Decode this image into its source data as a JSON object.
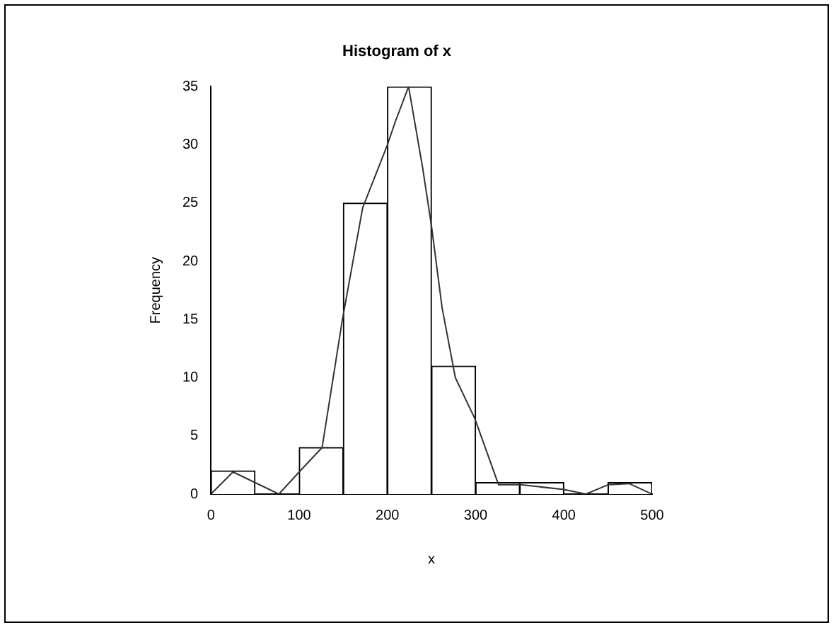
{
  "chart_data": {
    "type": "histogram",
    "title": "Histogram of x",
    "xlabel": "x",
    "ylabel": "Frequency",
    "bins": [
      0,
      50,
      100,
      150,
      200,
      250,
      300,
      350,
      400,
      450,
      500
    ],
    "values": [
      2,
      0,
      4,
      25,
      35,
      11,
      1,
      1,
      0,
      1
    ],
    "color": "#ffffff",
    "series": [
      {
        "type": "line",
        "color": "#333333",
        "x": [
          0,
          25,
          77,
          100,
          126,
          149,
          172,
          200,
          209,
          224,
          240,
          250,
          262,
          277,
          299,
          326,
          351,
          400,
          425,
          450,
          474,
          500
        ],
        "values": [
          0,
          1.9,
          0,
          1.9,
          4,
          15,
          24.6,
          30,
          32,
          35,
          28,
          23,
          16,
          10,
          6.5,
          0.8,
          0.8,
          0.4,
          0,
          0.8,
          0.9,
          0
        ]
      }
    ],
    "xlim": [
      0,
      500
    ],
    "xticks": [
      0,
      100,
      200,
      300,
      400,
      500
    ],
    "ylim": [
      0,
      35
    ],
    "yticks": [
      0,
      5,
      10,
      15,
      20,
      25,
      30,
      35
    ],
    "grid": false,
    "legend": false
  }
}
